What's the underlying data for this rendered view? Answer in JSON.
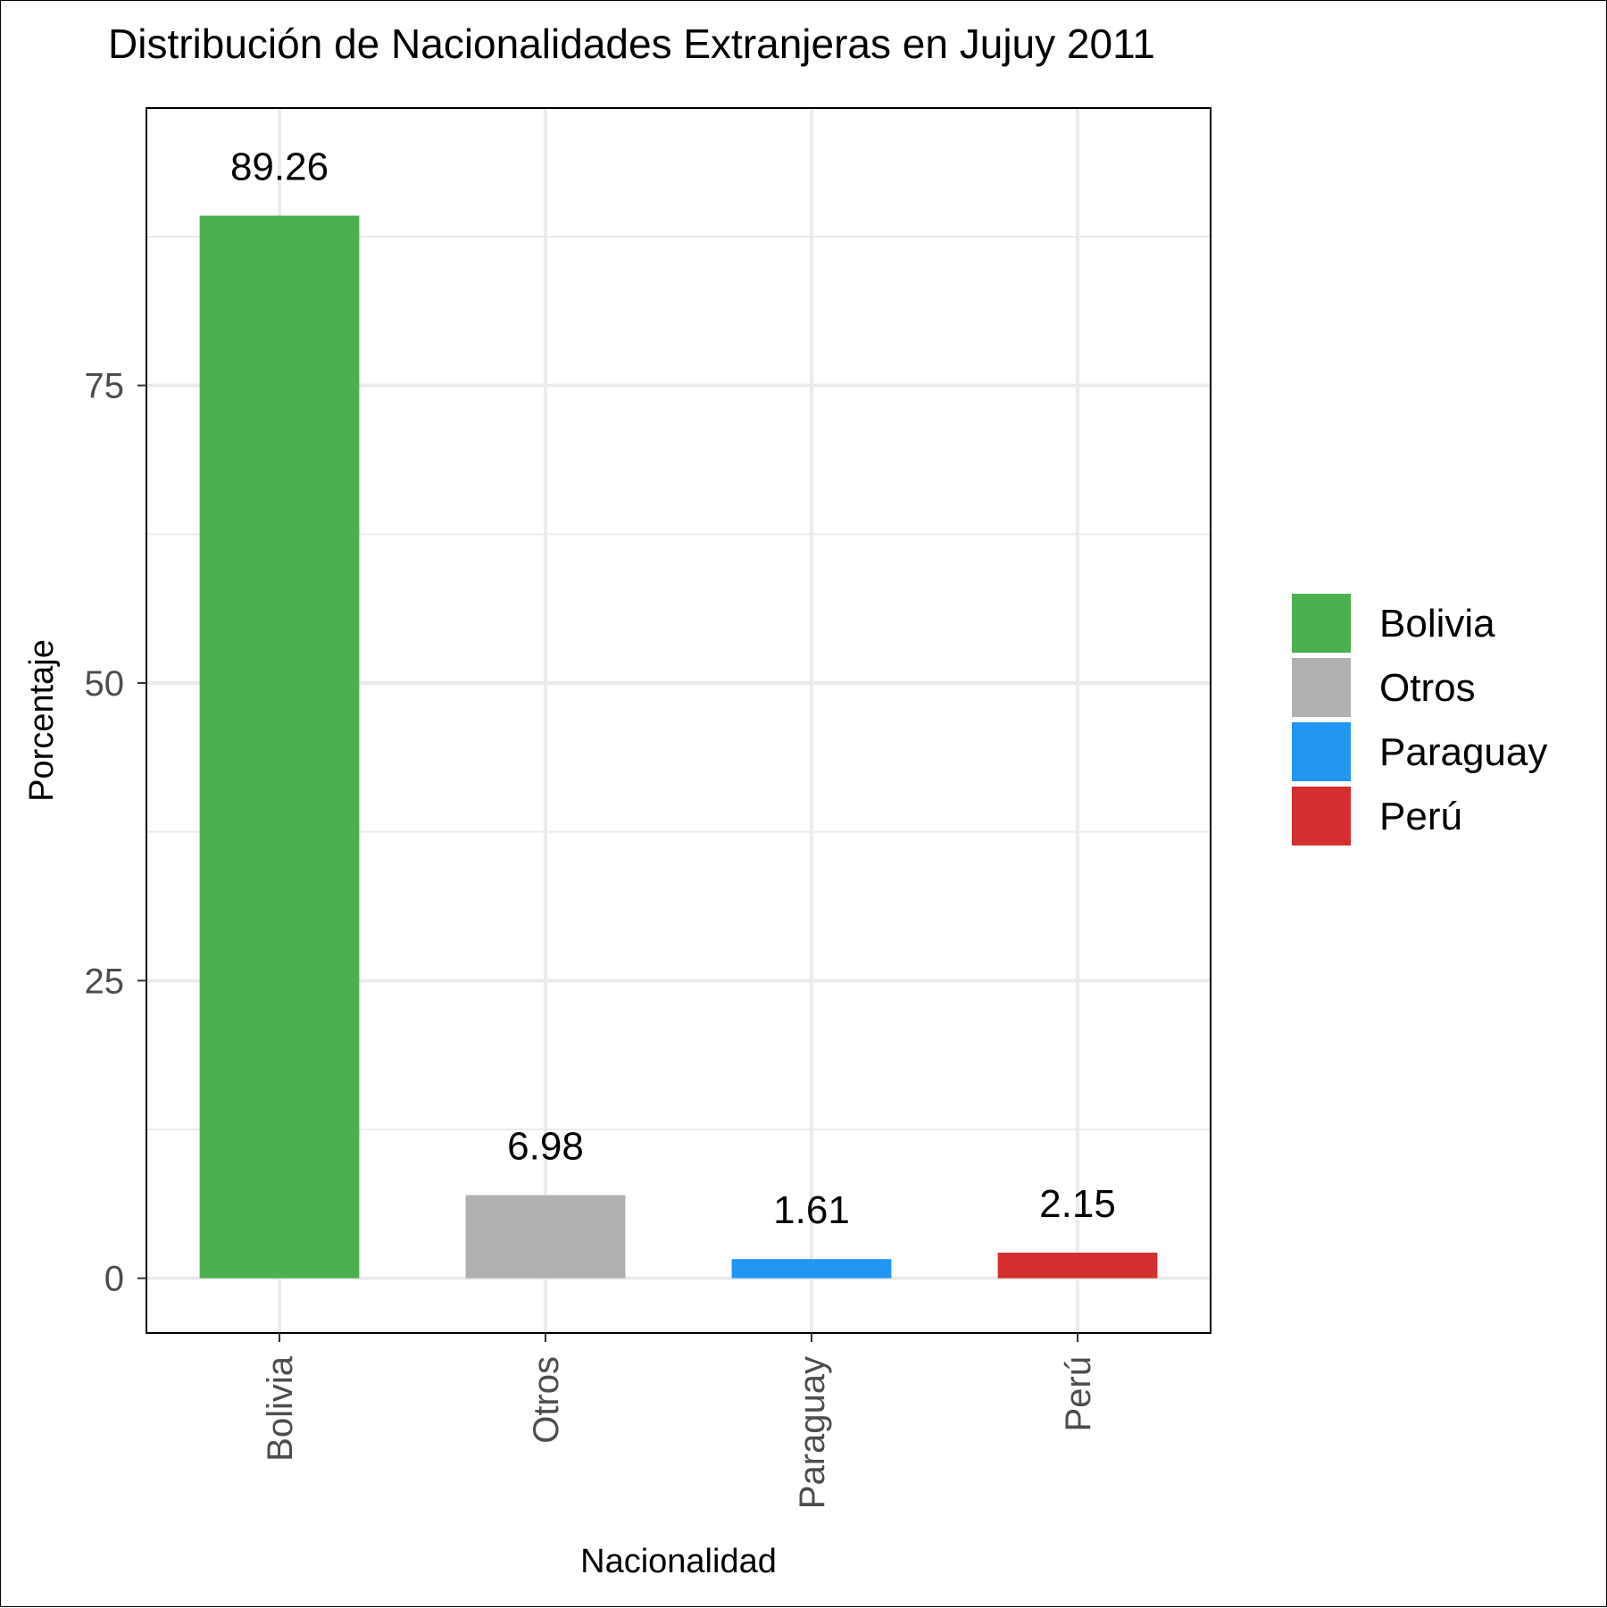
{
  "chart_data": {
    "type": "bar",
    "title": "Distribución de Nacionalidades Extranjeras en Jujuy 2011",
    "xlabel": "Nacionalidad",
    "ylabel": "Porcentaje",
    "categories": [
      "Bolivia",
      "Otros",
      "Paraguay",
      "Perú"
    ],
    "values": [
      89.26,
      6.98,
      1.61,
      2.15
    ],
    "data_labels": [
      "89.26",
      "6.98",
      "1.61",
      "2.15"
    ],
    "colors": [
      "#4caf50",
      "#b0b0b0",
      "#2196f3",
      "#d32f2f"
    ],
    "y_ticks": [
      0,
      25,
      50,
      75
    ],
    "y_tick_labels": [
      "0",
      "25",
      "50",
      "75"
    ],
    "ylim": [
      -4.6,
      98.3
    ],
    "grid": true,
    "x_tick_rotation": -90,
    "legend": {
      "position": "right",
      "entries": [
        "Bolivia",
        "Otros",
        "Paraguay",
        "Perú"
      ]
    }
  }
}
